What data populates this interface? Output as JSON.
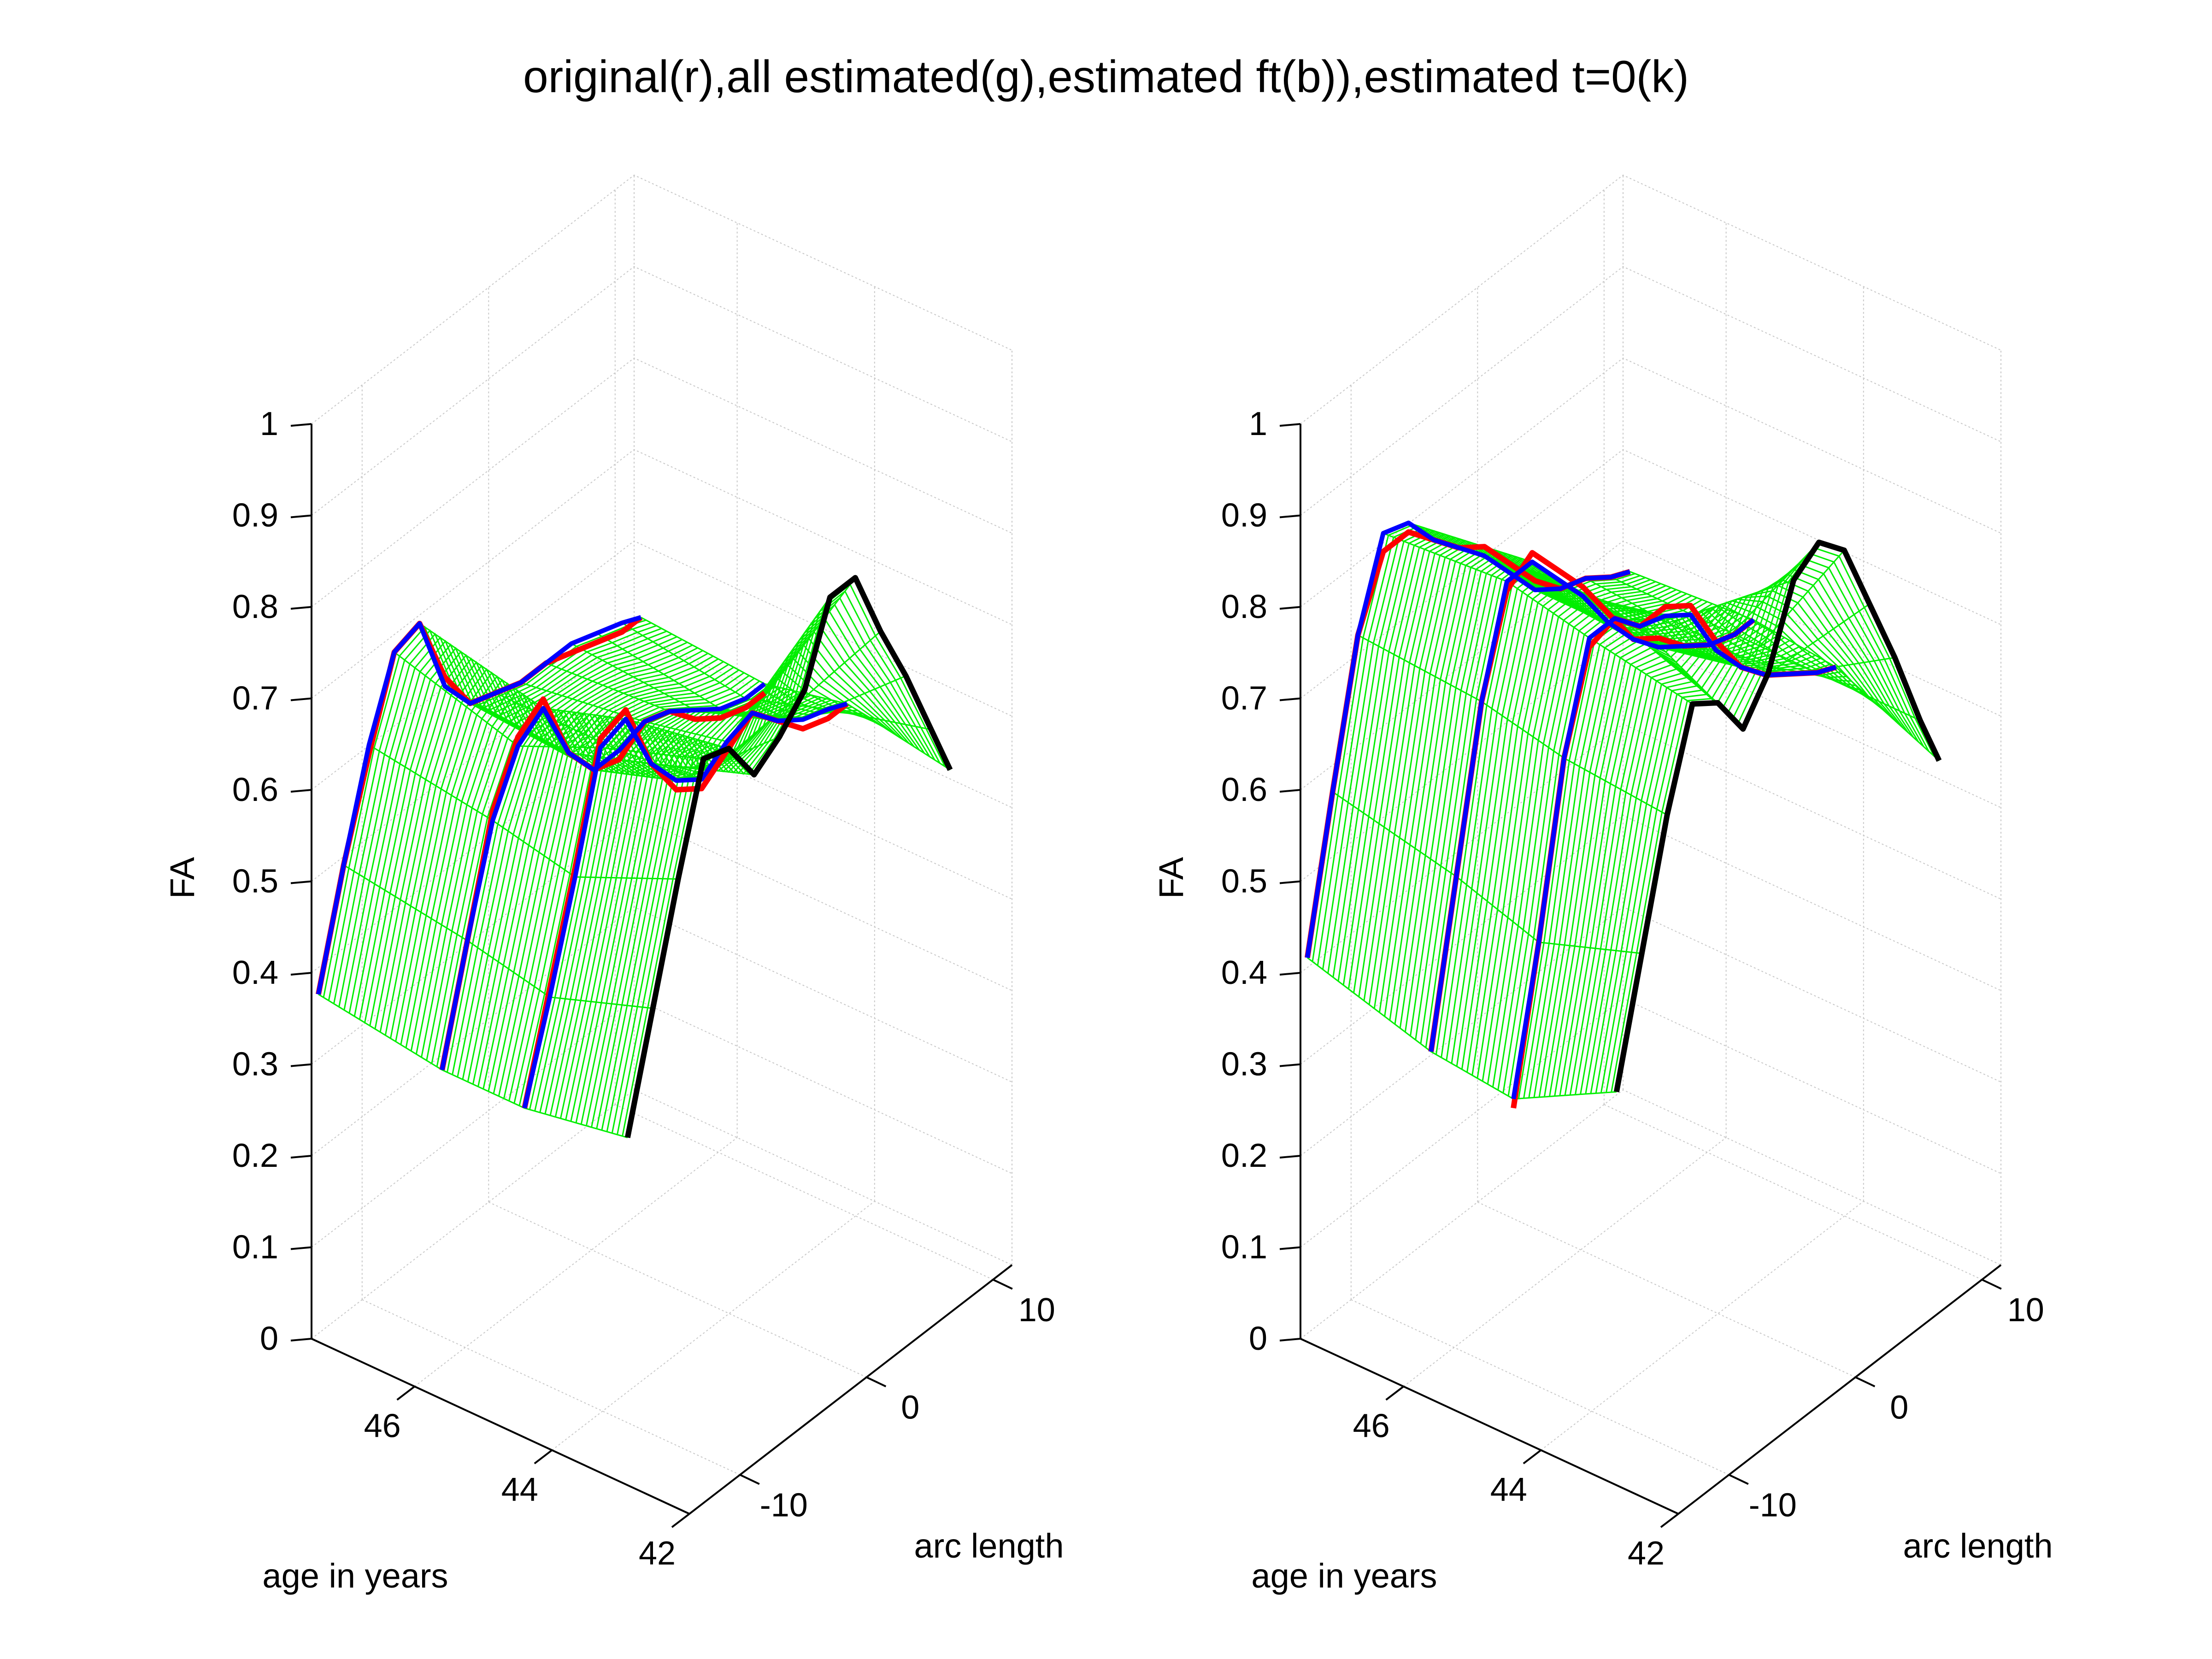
{
  "title": "original(r),all estimated(g),estimated ft(b)),estimated t=0(k)",
  "colors": {
    "original": "#ff0000",
    "all_estimated": "#00ee00",
    "estimated_ft": "#0000ff",
    "estimated_t0": "#000000",
    "grid": "#c8c8c8"
  },
  "chart_data": [
    {
      "type": "surface3d",
      "zlabel": "FA",
      "xlabel": "age in years",
      "ylabel": "arc length",
      "x_ticks": [
        "42",
        "44",
        "46"
      ],
      "y_ticks": [
        "-10",
        "0",
        "10"
      ],
      "z_ticks": [
        "0",
        "0.1",
        "0.2",
        "0.3",
        "0.4",
        "0.5",
        "0.6",
        "0.7",
        "0.8",
        "0.9",
        "1"
      ],
      "xlim": [
        42,
        47.5
      ],
      "ylim": [
        -14,
        11.5
      ],
      "zlim": [
        0,
        1
      ],
      "arc_length": [
        -14,
        -12,
        -10,
        -8,
        -6,
        -4,
        -2,
        0,
        2,
        4,
        6,
        8,
        10,
        11.5
      ],
      "estimated_t0": {
        "age": 42.9,
        "fa": [
          0.38,
          0.5,
          0.62,
          0.73,
          0.72,
          0.67,
          0.69,
          0.72,
          0.8,
          0.8,
          0.72,
          0.65,
          0.57,
          0.51
        ]
      },
      "original_curves": [
        {
          "age": 47.4,
          "fa": [
            0.38,
            0.5,
            0.6,
            0.69,
            0.7,
            0.62,
            0.57,
            0.56,
            0.55,
            0.55,
            0.54,
            0.53,
            0.52,
            0.52
          ]
        },
        {
          "age": 45.6,
          "fa": [
            0.36,
            0.48,
            0.6,
            0.66,
            0.68,
            0.6,
            0.56,
            0.55,
            0.57,
            0.56,
            0.53,
            0.51,
            0.5,
            0.5
          ]
        },
        {
          "age": 44.4,
          "fa": [
            0.36,
            0.47,
            0.58,
            0.7,
            0.71,
            0.63,
            0.58,
            0.56,
            0.58,
            0.6,
            0.57,
            0.54,
            0.53,
            0.53
          ]
        }
      ],
      "estimated_ft_curves": [
        {
          "age": 47.4,
          "fa": [
            0.38,
            0.5,
            0.61,
            0.69,
            0.7,
            0.61,
            0.57,
            0.56,
            0.55,
            0.55,
            0.55,
            0.54,
            0.53,
            0.52
          ]
        },
        {
          "age": 45.6,
          "fa": [
            0.36,
            0.48,
            0.59,
            0.65,
            0.67,
            0.6,
            0.56,
            0.56,
            0.57,
            0.56,
            0.54,
            0.52,
            0.51,
            0.51
          ]
        },
        {
          "age": 44.4,
          "fa": [
            0.36,
            0.46,
            0.57,
            0.69,
            0.7,
            0.63,
            0.59,
            0.57,
            0.59,
            0.6,
            0.57,
            0.55,
            0.54,
            0.53
          ]
        }
      ]
    },
    {
      "type": "surface3d",
      "zlabel": "FA",
      "xlabel": "age in years",
      "ylabel": "arc length",
      "x_ticks": [
        "42",
        "44",
        "46"
      ],
      "y_ticks": [
        "-10",
        "0",
        "10"
      ],
      "z_ticks": [
        "0",
        "0.1",
        "0.2",
        "0.3",
        "0.4",
        "0.5",
        "0.6",
        "0.7",
        "0.8",
        "0.9",
        "1"
      ],
      "xlim": [
        42,
        47.5
      ],
      "ylim": [
        -14,
        11.5
      ],
      "zlim": [
        0,
        1
      ],
      "arc_length": [
        -14,
        -12,
        -10,
        -8,
        -6,
        -4,
        -2,
        0,
        2,
        4,
        6,
        8,
        10,
        11.5
      ],
      "estimated_t0": {
        "age": 42.9,
        "fa": [
          0.43,
          0.56,
          0.69,
          0.79,
          0.77,
          0.72,
          0.76,
          0.84,
          0.86,
          0.83,
          0.75,
          0.67,
          0.58,
          0.52
        ]
      },
      "original_curves": [
        {
          "age": 47.4,
          "fa": [
            0.42,
            0.58,
            0.73,
            0.8,
            0.8,
            0.77,
            0.74,
            0.72,
            0.68,
            0.64,
            0.61,
            0.6,
            0.58,
            0.57
          ]
        },
        {
          "age": 45.6,
          "fa": [
            0.38,
            0.55,
            0.72,
            0.82,
            0.84,
            0.8,
            0.76,
            0.71,
            0.66,
            0.64,
            0.61,
            0.59,
            0.58,
            0.58
          ]
        },
        {
          "age": 44.4,
          "fa": [
            0.36,
            0.52,
            0.7,
            0.8,
            0.81,
            0.78,
            0.78,
            0.76,
            0.7,
            0.65,
            0.62,
            0.6,
            0.58,
            0.57
          ]
        }
      ],
      "estimated_ft_curves": [
        {
          "age": 47.4,
          "fa": [
            0.42,
            0.58,
            0.73,
            0.82,
            0.81,
            0.77,
            0.74,
            0.71,
            0.67,
            0.63,
            0.61,
            0.6,
            0.58,
            0.57
          ]
        },
        {
          "age": 45.6,
          "fa": [
            0.38,
            0.55,
            0.72,
            0.83,
            0.83,
            0.79,
            0.75,
            0.7,
            0.66,
            0.63,
            0.61,
            0.59,
            0.58,
            0.58
          ]
        },
        {
          "age": 44.4,
          "fa": [
            0.37,
            0.52,
            0.7,
            0.81,
            0.81,
            0.78,
            0.77,
            0.75,
            0.69,
            0.65,
            0.62,
            0.6,
            0.58,
            0.57
          ]
        }
      ]
    }
  ]
}
